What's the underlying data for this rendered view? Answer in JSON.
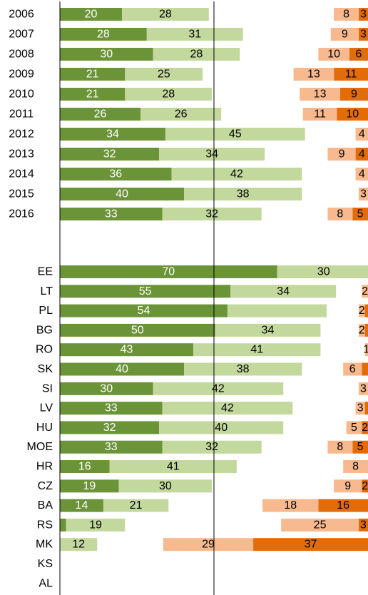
{
  "colors": {
    "positive_dark": "#6b9337",
    "positive_light": "#c3d89d",
    "negative_light": "#f7b98d",
    "negative_dark": "#e36c0a"
  },
  "chart_data": [
    {
      "type": "bar",
      "orientation": "horizontal",
      "stacked": "diverging",
      "title": "",
      "xlabel": "",
      "ylabel": "",
      "categories": [
        "2006",
        "2007",
        "2008",
        "2009",
        "2010",
        "2011",
        "2012",
        "2013",
        "2014",
        "2015",
        "2016"
      ],
      "positive": {
        "dark": [
          20,
          28,
          30,
          21,
          21,
          26,
          34,
          32,
          36,
          40,
          33
        ],
        "light": [
          28,
          31,
          28,
          25,
          28,
          26,
          45,
          34,
          42,
          38,
          32
        ]
      },
      "negative": {
        "light": [
          8,
          9,
          10,
          13,
          13,
          11,
          4,
          9,
          4,
          3,
          8
        ],
        "dark": [
          3,
          3,
          6,
          11,
          9,
          10,
          0,
          4,
          0,
          0,
          5
        ]
      },
      "labels": {
        "positive_dark": [
          "20",
          "28",
          "30",
          "21",
          "21",
          "26",
          "34",
          "32",
          "36",
          "40",
          "33"
        ],
        "positive_light": [
          "28",
          "31",
          "28",
          "25",
          "28",
          "26",
          "45",
          "34",
          "42",
          "38",
          "32"
        ],
        "negative_light": [
          "8",
          "9",
          "10",
          "13",
          "13",
          "11",
          "4",
          "9",
          "4",
          "3",
          "8"
        ],
        "negative_dark": [
          "3",
          "3",
          "6",
          "11",
          "9",
          "10",
          "",
          "4",
          "",
          "",
          "5"
        ]
      }
    },
    {
      "type": "bar",
      "orientation": "horizontal",
      "stacked": "diverging",
      "title": "",
      "xlabel": "",
      "ylabel": "",
      "categories": [
        "EE",
        "LT",
        "PL",
        "BG",
        "RO",
        "SK",
        "SI",
        "LV",
        "HU",
        "MOE",
        "HR",
        "CZ",
        "BA",
        "RS",
        "MK",
        "KS",
        "AL"
      ],
      "positive": {
        "dark": [
          70,
          55,
          54,
          50,
          43,
          40,
          30,
          33,
          32,
          33,
          16,
          19,
          14,
          2,
          0,
          0,
          0
        ],
        "light": [
          30,
          34,
          32,
          34,
          41,
          38,
          42,
          42,
          40,
          32,
          41,
          30,
          21,
          19,
          12,
          0,
          0
        ]
      },
      "negative": {
        "light": [
          0,
          2,
          2,
          2,
          1,
          6,
          3,
          3,
          5,
          8,
          8,
          9,
          18,
          25,
          29,
          0,
          0
        ],
        "dark": [
          0,
          0,
          1,
          1,
          0,
          2,
          0,
          1,
          2,
          5,
          0,
          2,
          16,
          3,
          37,
          0,
          0
        ]
      },
      "labels": {
        "positive_dark": [
          "70",
          "55",
          "54",
          "50",
          "43",
          "40",
          "30",
          "33",
          "32",
          "33",
          "16",
          "19",
          "14",
          "",
          "",
          "",
          ""
        ],
        "positive_light": [
          "30",
          "34",
          "",
          "34",
          "41",
          "38",
          "42",
          "42",
          "40",
          "32",
          "41",
          "30",
          "21",
          "19",
          "12",
          "",
          ""
        ],
        "negative_light": [
          "",
          "2",
          "2",
          "2",
          "1",
          "6",
          "3",
          "3",
          "5",
          "8",
          "8",
          "9",
          "18",
          "25",
          "29",
          "",
          ""
        ],
        "negative_dark": [
          "",
          "",
          "",
          "",
          "",
          "",
          "",
          "",
          "2",
          "5",
          "",
          "2",
          "16",
          "3",
          "37",
          "",
          ""
        ]
      }
    }
  ]
}
